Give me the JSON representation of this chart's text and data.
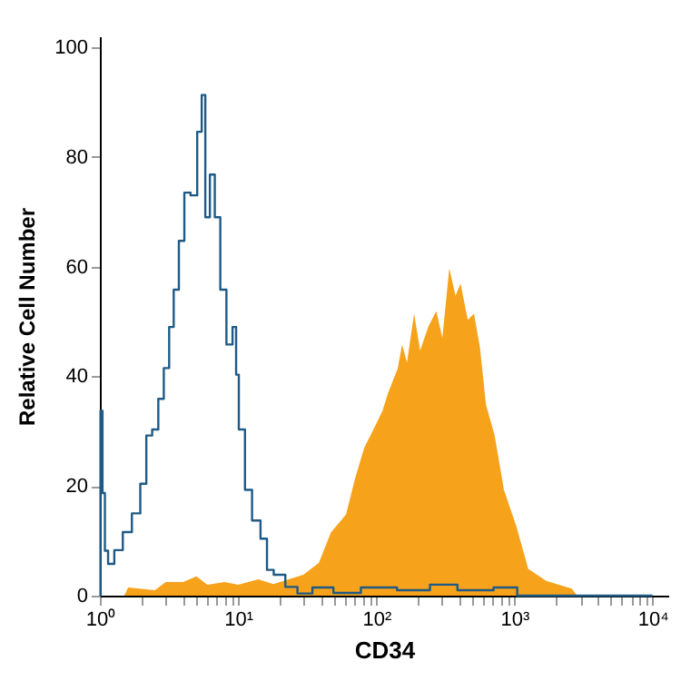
{
  "chart_data": {
    "type": "area",
    "xlabel": "CD34",
    "ylabel": "Relative Cell Number",
    "log": "x",
    "grid": false,
    "xlim": [
      1,
      13000
    ],
    "ylim": [
      0,
      102
    ],
    "xticks": [
      {
        "value": 1,
        "label": "10⁰"
      },
      {
        "value": 2,
        "label": null
      },
      {
        "value": 3,
        "label": null
      },
      {
        "value": 4,
        "label": null
      },
      {
        "value": 5,
        "label": null
      },
      {
        "value": 6,
        "label": null
      },
      {
        "value": 7,
        "label": null
      },
      {
        "value": 8,
        "label": null
      },
      {
        "value": 9,
        "label": null
      },
      {
        "value": 10,
        "label": "10¹"
      },
      {
        "value": 20,
        "label": null
      },
      {
        "value": 30,
        "label": null
      },
      {
        "value": 40,
        "label": null
      },
      {
        "value": 50,
        "label": null
      },
      {
        "value": 60,
        "label": null
      },
      {
        "value": 70,
        "label": null
      },
      {
        "value": 80,
        "label": null
      },
      {
        "value": 90,
        "label": null
      },
      {
        "value": 100,
        "label": "10²"
      },
      {
        "value": 200,
        "label": null
      },
      {
        "value": 300,
        "label": null
      },
      {
        "value": 400,
        "label": null
      },
      {
        "value": 500,
        "label": null
      },
      {
        "value": 600,
        "label": null
      },
      {
        "value": 700,
        "label": null
      },
      {
        "value": 800,
        "label": null
      },
      {
        "value": 900,
        "label": null
      },
      {
        "value": 1000,
        "label": "10³"
      },
      {
        "value": 2000,
        "label": null
      },
      {
        "value": 3000,
        "label": null
      },
      {
        "value": 4000,
        "label": null
      },
      {
        "value": 5000,
        "label": null
      },
      {
        "value": 6000,
        "label": null
      },
      {
        "value": 7000,
        "label": null
      },
      {
        "value": 8000,
        "label": null
      },
      {
        "value": 9000,
        "label": null
      },
      {
        "value": 10000,
        "label": "10⁴"
      }
    ],
    "yticks": [
      0,
      20,
      40,
      60,
      80,
      100
    ],
    "series": [
      {
        "type": "area",
        "color": "#f7a21b",
        "x": [
          1.5,
          1.6,
          2.5,
          3,
          4,
          5,
          6,
          8,
          10,
          14,
          18,
          29.7,
          38.5,
          47,
          60.5,
          70.5,
          82,
          95.5,
          111,
          122,
          143,
          154,
          167,
          188,
          208,
          238,
          272,
          301,
          338,
          375,
          408,
          460,
          510,
          563,
          623,
          720,
          840,
          1035,
          1260,
          1700,
          2600,
          2850
        ],
        "values": [
          0,
          1.5,
          1,
          2.5,
          2.5,
          3.5,
          2,
          2.5,
          2,
          3,
          2.1,
          3.8,
          6,
          11.5,
          14.8,
          21.5,
          27,
          30.3,
          33.7,
          37,
          41.4,
          45.8,
          42.5,
          51.4,
          44.7,
          49,
          51.9,
          47,
          59.7,
          54.7,
          56.9,
          50.3,
          51.4,
          45.3,
          34.8,
          29.2,
          19.3,
          12.6,
          4.9,
          2.7,
          1.3,
          0
        ]
      },
      {
        "type": "step",
        "color": "#1f5a85",
        "x": [
          1,
          1.02,
          1.07,
          1.105,
          1.19,
          1.36,
          1.58,
          1.84,
          2.09,
          2.25,
          2.54,
          2.76,
          3.05,
          3.3,
          3.55,
          3.92,
          4.26,
          4.82,
          5.32,
          5.6,
          6,
          6.52,
          7.07,
          7.83,
          8.67,
          9.6,
          9.77,
          10.5,
          12,
          13.3,
          15.9,
          16.5,
          19.9,
          24.3,
          29.8,
          40,
          60,
          100,
          200,
          300,
          500,
          1000,
          1100,
          10000
        ],
        "values": [
          0,
          33.7,
          18.7,
          8.2,
          5.8,
          8.3,
          11.6,
          15,
          20.4,
          29.2,
          30.3,
          35.9,
          41.5,
          49,
          55.8,
          64.7,
          73.5,
          73,
          84.6,
          91.3,
          69,
          76.8,
          69,
          55.8,
          45.8,
          49,
          40.3,
          30.3,
          19.3,
          13.7,
          10.4,
          4.7,
          3.8,
          1.6,
          0.4,
          1.5,
          0.5,
          1.5,
          1,
          2,
          1,
          1.5,
          0,
          0
        ]
      }
    ]
  }
}
